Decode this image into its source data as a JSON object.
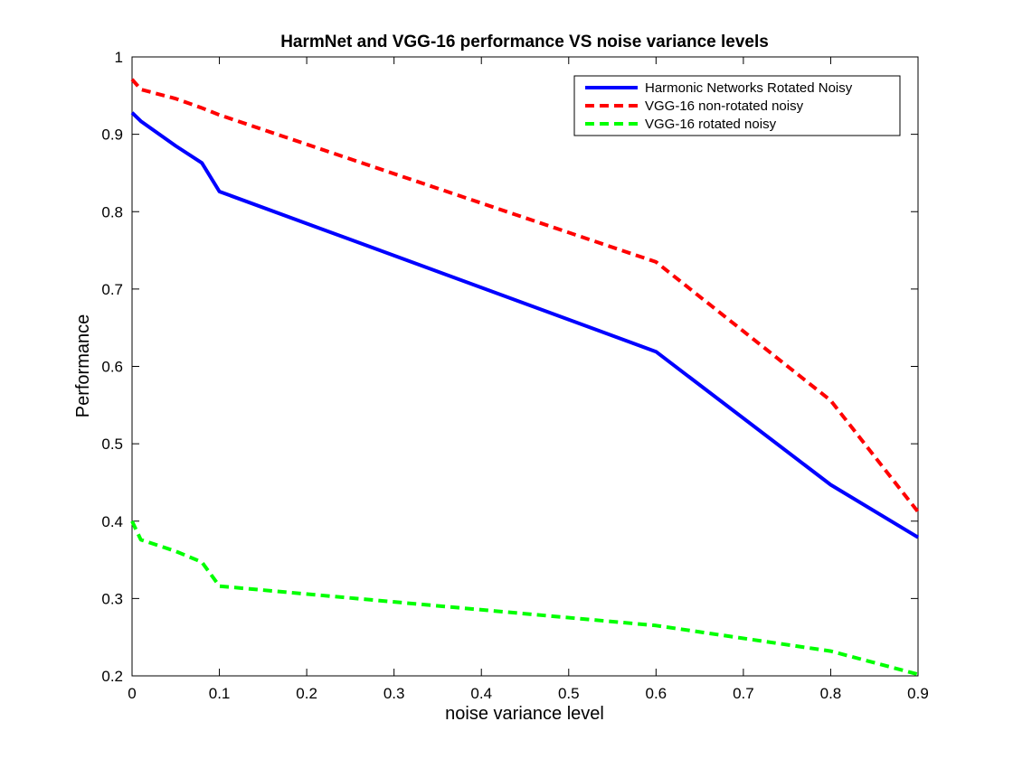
{
  "chart_data": {
    "type": "line",
    "title": "HarmNet and VGG-16 performance VS noise variance levels",
    "xlabel": "noise variance level",
    "ylabel": "Performance",
    "xlim": [
      0,
      0.9
    ],
    "ylim": [
      0.2,
      1
    ],
    "x_ticks": [
      "0",
      "0.1",
      "0.2",
      "0.3",
      "0.4",
      "0.5",
      "0.6",
      "0.7",
      "0.8",
      "0.9"
    ],
    "y_ticks": [
      "0.2",
      "0.3",
      "0.4",
      "0.5",
      "0.6",
      "0.7",
      "0.8",
      "0.9",
      "1"
    ],
    "legend_position": "top-right",
    "grid": false,
    "series": [
      {
        "name": "Harmonic Networks Rotated Noisy",
        "color": "#0000ff",
        "style": "solid",
        "x": [
          0,
          0.01,
          0.05,
          0.08,
          0.1,
          0.6,
          0.8,
          0.9
        ],
        "y": [
          0.928,
          0.917,
          0.885,
          0.863,
          0.826,
          0.619,
          0.447,
          0.379
        ]
      },
      {
        "name": "VGG-16 non-rotated noisy",
        "color": "#ff0000",
        "style": "dashed",
        "x": [
          0,
          0.01,
          0.05,
          0.08,
          0.1,
          0.6,
          0.8,
          0.9
        ],
        "y": [
          0.971,
          0.958,
          0.946,
          0.934,
          0.925,
          0.735,
          0.556,
          0.412
        ]
      },
      {
        "name": "VGG-16 rotated noisy",
        "color": "#00ff00",
        "style": "dashed",
        "x": [
          0,
          0.01,
          0.05,
          0.08,
          0.1,
          0.6,
          0.8,
          0.9
        ],
        "y": [
          0.4,
          0.376,
          0.361,
          0.347,
          0.316,
          0.265,
          0.232,
          0.202
        ]
      }
    ]
  }
}
